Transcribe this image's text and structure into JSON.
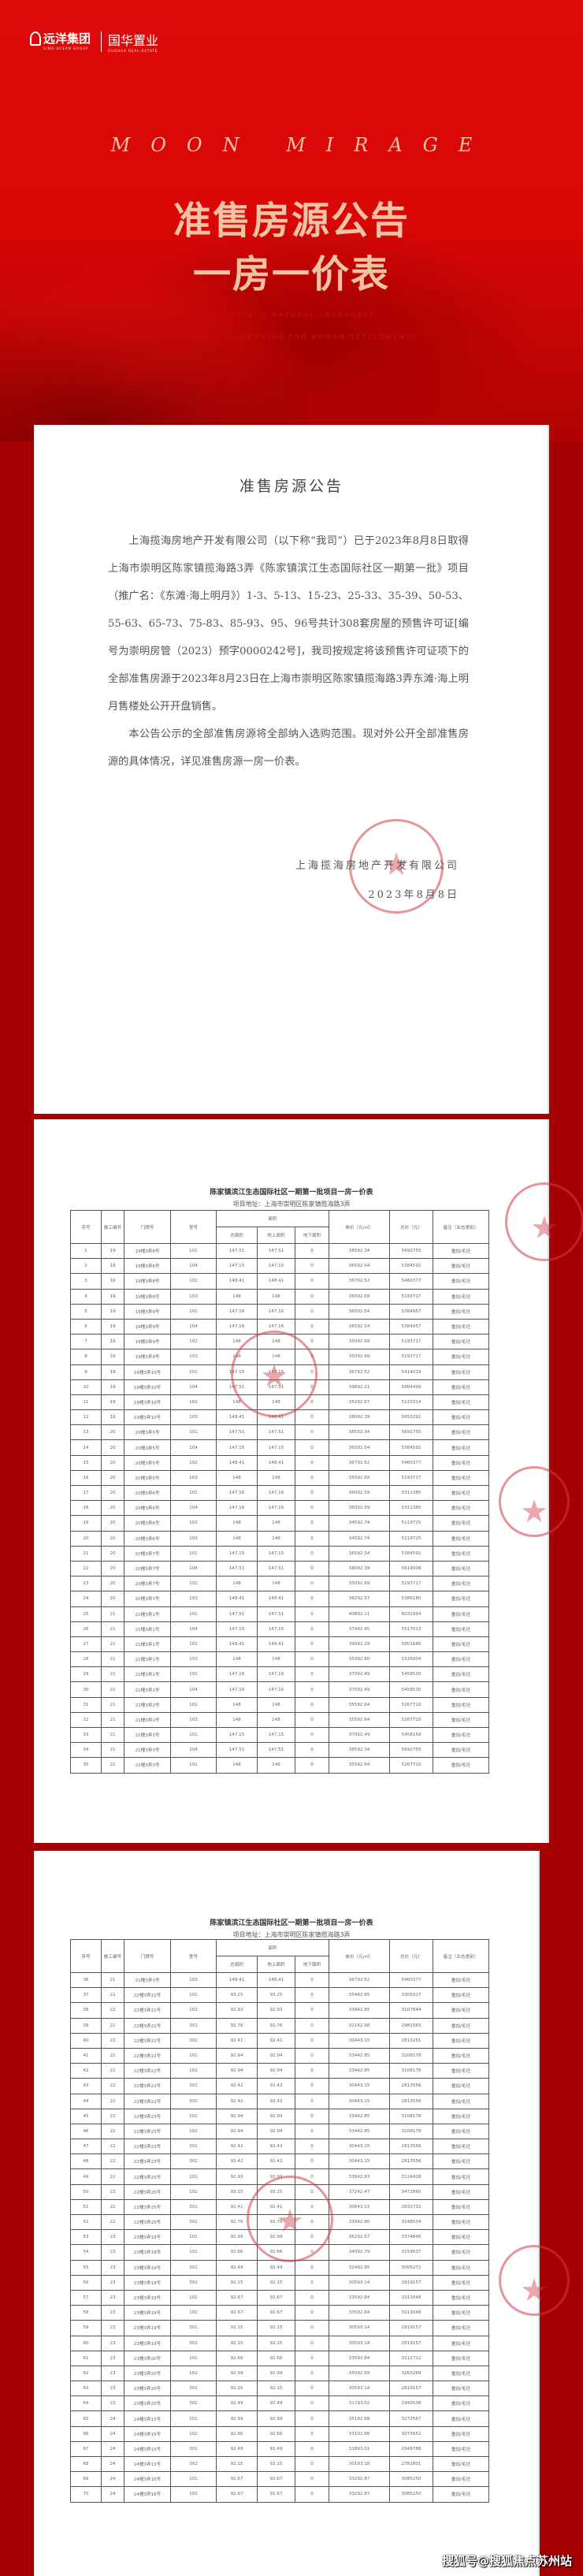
{
  "header": {
    "logo1": {
      "name": "远洋集团",
      "en": "SINO-OCEAN GROUP"
    },
    "logo2": {
      "name": "国华置业",
      "en": "GUOHUA REAL-ESTATE"
    },
    "brand": "MOON MIRAGE",
    "title_line1": "准售房源公告",
    "title_line2": "一房一价表",
    "subtitle1": "SHANGHAI'S NATURAL TREASURES",
    "subtitle2": "THE WORLD'S YEARNING FOR HUMAN SETTLEMENTS"
  },
  "notice": {
    "title": "准售房源公告",
    "para1": "上海揽海房地产开发有限公司（以下称“我司”）已于2023年8月8日取得上海市崇明区陈家镇揽海路3弄《陈家镇滨江生态国际社区一期第一批》项目（推广名：《东滩·海上明月》）1-3、5-13、15-23、25-33、35-39、50-53、55-63、65-73、75-83、85-93、95、96号共计308套房屋的预售许可证[编号为崇明房管（2023）预字0000242号]，我司按规定将该预售许可证项下的全部准售房源于2023年8月23日在上海市崇明区陈家镇揽海路3弄东滩·海上明月售楼处公开开盘销售。",
    "para2": "本公告公示的全部准售房源将全部纳入选购范围。现对外公开全部准售房源的具体情况，详见准售房源一房一价表。",
    "company": "上海揽海房地产开发有限公司",
    "date": "2023年8月8日"
  },
  "price_table": {
    "title": "陈家镇滨江生态国际社区一期第一批项目一房一价表",
    "address": "项目地址：上海市崇明区陈家镇揽海路3弄",
    "headers": {
      "seq": "序号",
      "build_no": "施工编号",
      "door_no": "门牌号",
      "room": "室号",
      "area": "面积",
      "total_area": "总面积",
      "above_area": "地上面积",
      "under_area": "地下面积",
      "unit_price": "单价（元/㎡）",
      "total_price": "总价（元）",
      "remark": "备注（业态类别）"
    },
    "remark_value": "叠加/毛坯",
    "pages": [
      {
        "rows": [
          [
            "1",
            "19",
            "19幢3弄8号",
            "101",
            "147.51",
            "147.51",
            "0",
            "38592.34",
            "5692755"
          ],
          [
            "2",
            "19",
            "19幢3弄8号",
            "104",
            "147.15",
            "147.15",
            "0",
            "36592.54",
            "5384592"
          ],
          [
            "3",
            "19",
            "19幢3弄8号",
            "102",
            "148.41",
            "148.41",
            "0",
            "36792.52",
            "5460377"
          ],
          [
            "4",
            "19",
            "19幢3弄8号",
            "103",
            "148",
            "148",
            "0",
            "35092.69",
            "5193717"
          ],
          [
            "5",
            "19",
            "19幢3弄9号",
            "101",
            "147.16",
            "147.16",
            "0",
            "36592.54",
            "5384957"
          ],
          [
            "6",
            "19",
            "19幢3弄9号",
            "104",
            "147.16",
            "147.16",
            "0",
            "36592.54",
            "5384957"
          ],
          [
            "7",
            "19",
            "19幢3弄9号",
            "102",
            "148",
            "148",
            "0",
            "35092.69",
            "5193717"
          ],
          [
            "8",
            "19",
            "19幢3弄9号",
            "103",
            "148",
            "148",
            "0",
            "35092.69",
            "5193717"
          ],
          [
            "9",
            "19",
            "19幢3弄10号",
            "101",
            "147.15",
            "147.15",
            "0",
            "36792.52",
            "5414019"
          ],
          [
            "10",
            "19",
            "19幢3弄10号",
            "104",
            "147.51",
            "147.51",
            "0",
            "39892.21",
            "5884499"
          ],
          [
            "11",
            "19",
            "19幢3弄10号",
            "102",
            "148",
            "148",
            "0",
            "35292.67",
            "5223314"
          ],
          [
            "12",
            "19",
            "19幢3弄10号",
            "103",
            "148.41",
            "148.41",
            "0",
            "38092.39",
            "5653291"
          ],
          [
            "13",
            "20",
            "20幢3弄5号",
            "101",
            "147.51",
            "147.51",
            "0",
            "38592.34",
            "5692755"
          ],
          [
            "14",
            "20",
            "20幢3弄5号",
            "104",
            "147.15",
            "147.15",
            "0",
            "36592.54",
            "5384592"
          ],
          [
            "15",
            "20",
            "20幢3弄5号",
            "102",
            "148.41",
            "148.41",
            "0",
            "36792.52",
            "5460377"
          ],
          [
            "16",
            "20",
            "20幢3弄5号",
            "103",
            "148",
            "148",
            "0",
            "35092.69",
            "5193717"
          ],
          [
            "17",
            "20",
            "20幢3弄6号",
            "101",
            "147.16",
            "147.16",
            "0",
            "36092.59",
            "5311385"
          ],
          [
            "18",
            "20",
            "20幢3弄6号",
            "104",
            "147.16",
            "147.16",
            "0",
            "36092.59",
            "5311385"
          ],
          [
            "19",
            "20",
            "20幢3弄6号",
            "102",
            "148",
            "148",
            "0",
            "34592.74",
            "5119725"
          ],
          [
            "20",
            "20",
            "20幢3弄6号",
            "103",
            "148",
            "148",
            "0",
            "34592.74",
            "5119725"
          ],
          [
            "21",
            "20",
            "20幢3弄7号",
            "101",
            "147.15",
            "147.15",
            "0",
            "36592.54",
            "5384592"
          ],
          [
            "22",
            "20",
            "20幢3弄7号",
            "104",
            "147.51",
            "147.51",
            "0",
            "38092.39",
            "5619008"
          ],
          [
            "23",
            "20",
            "20幢3弄7号",
            "102",
            "148",
            "148",
            "0",
            "35092.69",
            "5193717"
          ],
          [
            "24",
            "20",
            "20幢3弄7号",
            "103",
            "148.41",
            "148.41",
            "0",
            "36292.57",
            "5386180"
          ],
          [
            "25",
            "21",
            "21幢3弄1号",
            "101",
            "147.51",
            "147.51",
            "0",
            "40892.11",
            "6031994"
          ],
          [
            "26",
            "21",
            "21幢3弄1号",
            "104",
            "147.15",
            "147.15",
            "0",
            "37492.45",
            "5517013"
          ],
          [
            "27",
            "21",
            "21幢3弄1号",
            "102",
            "148.41",
            "148.41",
            "0",
            "39092.29",
            "5801686"
          ],
          [
            "28",
            "21",
            "21幢3弄1号",
            "103",
            "148",
            "148",
            "0",
            "35992.60",
            "5326904"
          ],
          [
            "29",
            "21",
            "21幢3弄2号",
            "101",
            "147.16",
            "147.16",
            "0",
            "37092.49",
            "5458530"
          ],
          [
            "30",
            "21",
            "21幢3弄2号",
            "104",
            "147.16",
            "147.16",
            "0",
            "37092.49",
            "5458530"
          ],
          [
            "31",
            "21",
            "21幢3弄2号",
            "102",
            "148",
            "148",
            "0",
            "35592.64",
            "5267710"
          ],
          [
            "32",
            "21",
            "21幢3弄2号",
            "103",
            "148",
            "148",
            "0",
            "35592.64",
            "5267710"
          ],
          [
            "33",
            "21",
            "21幢3弄3号",
            "101",
            "147.15",
            "147.15",
            "0",
            "37092.49",
            "5458159"
          ],
          [
            "34",
            "21",
            "21幢3弄3号",
            "104",
            "147.51",
            "147.51",
            "0",
            "38592.34",
            "5692755"
          ],
          [
            "35",
            "21",
            "21幢3弄3号",
            "102",
            "148",
            "148",
            "0",
            "35592.64",
            "5267710"
          ]
        ]
      },
      {
        "rows": [
          [
            "36",
            "21",
            "21幢3弄3号",
            "103",
            "148.41",
            "148.41",
            "0",
            "36792.52",
            "5460377"
          ],
          [
            "37",
            "22",
            "22幢3弄21号",
            "101",
            "93.25",
            "93.25",
            "0",
            "35442.65",
            "3305027"
          ],
          [
            "38",
            "22",
            "22幢3弄21号",
            "102",
            "92.93",
            "92.93",
            "0",
            "33442.85",
            "3107844"
          ],
          [
            "39",
            "22",
            "22幢3弄21号",
            "301",
            "92.76",
            "92.76",
            "0",
            "32142.98",
            "2981583"
          ],
          [
            "40",
            "22",
            "22幢3弄21号",
            "302",
            "92.41",
            "92.41",
            "0",
            "30443.15",
            "2813251"
          ],
          [
            "41",
            "22",
            "22幢3弄22号",
            "101",
            "92.94",
            "92.94",
            "0",
            "33442.85",
            "3108178"
          ],
          [
            "42",
            "22",
            "22幢3弄22号",
            "102",
            "92.94",
            "92.94",
            "0",
            "33442.85",
            "3108178"
          ],
          [
            "43",
            "22",
            "22幢3弄22号",
            "301",
            "92.42",
            "92.42",
            "0",
            "30443.15",
            "2813556"
          ],
          [
            "44",
            "22",
            "22幢3弄22号",
            "302",
            "92.42",
            "92.42",
            "0",
            "30443.15",
            "2813556"
          ],
          [
            "45",
            "22",
            "22幢3弄23号",
            "101",
            "92.94",
            "92.94",
            "0",
            "33442.85",
            "3108178"
          ],
          [
            "46",
            "22",
            "22幢3弄23号",
            "102",
            "92.94",
            "92.94",
            "0",
            "33442.85",
            "3108178"
          ],
          [
            "47",
            "22",
            "22幢3弄23号",
            "301",
            "92.42",
            "92.42",
            "0",
            "30443.15",
            "2813556"
          ],
          [
            "48",
            "22",
            "22幢3弄23号",
            "302",
            "92.42",
            "92.42",
            "0",
            "30443.15",
            "2813556"
          ],
          [
            "49",
            "22",
            "22幢3弄25号",
            "101",
            "92.93",
            "92.93",
            "0",
            "33642.83",
            "3126428"
          ],
          [
            "50",
            "22",
            "22幢3弄25号",
            "102",
            "93.25",
            "93.25",
            "0",
            "37242.47",
            "3472860"
          ],
          [
            "51",
            "22",
            "22幢3弄25号",
            "301",
            "92.41",
            "92.41",
            "0",
            "30643.13",
            "2831732"
          ],
          [
            "52",
            "22",
            "22幢3弄25号",
            "302",
            "92.76",
            "92.76",
            "0",
            "33942.80",
            "3148534"
          ],
          [
            "53",
            "23",
            "23幢3弄18号",
            "101",
            "92.99",
            "92.99",
            "0",
            "36292.57",
            "3374846"
          ],
          [
            "54",
            "23",
            "23幢3弄18号",
            "102",
            "92.66",
            "92.66",
            "0",
            "34092.79",
            "3159037"
          ],
          [
            "55",
            "23",
            "23幢3弄18号",
            "301",
            "92.49",
            "92.49",
            "0",
            "32492.95",
            "3005272"
          ],
          [
            "56",
            "23",
            "23幢3弄18号",
            "302",
            "92.15",
            "92.15",
            "0",
            "30593.14",
            "2819157"
          ],
          [
            "57",
            "23",
            "23幢3弄19号",
            "101",
            "92.67",
            "92.67",
            "0",
            "33592.84",
            "3113048"
          ],
          [
            "58",
            "23",
            "23幢3弄19号",
            "102",
            "92.67",
            "92.67",
            "0",
            "33592.84",
            "3113048"
          ],
          [
            "59",
            "23",
            "23幢3弄19号",
            "301",
            "92.15",
            "92.15",
            "0",
            "30593.14",
            "2819157"
          ],
          [
            "60",
            "23",
            "23幢3弄19号",
            "302",
            "92.15",
            "92.15",
            "0",
            "30593.14",
            "2819157"
          ],
          [
            "61",
            "23",
            "23幢3弄20号",
            "101",
            "92.66",
            "92.66",
            "0",
            "33592.84",
            "3112712"
          ],
          [
            "62",
            "23",
            "23幢3弄20号",
            "102",
            "92.99",
            "92.99",
            "0",
            "35092.69",
            "3263269"
          ],
          [
            "63",
            "23",
            "23幢3弄20号",
            "301",
            "92.15",
            "92.15",
            "0",
            "30593.14",
            "2819157"
          ],
          [
            "64",
            "23",
            "23幢3弄20号",
            "302",
            "92.49",
            "92.49",
            "0",
            "31793.02",
            "2940538"
          ],
          [
            "65",
            "24",
            "24幢3弄15号",
            "101",
            "92.99",
            "92.99",
            "0",
            "35192.68",
            "3272567"
          ],
          [
            "66",
            "24",
            "24幢3弄15号",
            "102",
            "92.66",
            "92.66",
            "0",
            "33192.88",
            "3075652"
          ],
          [
            "67",
            "24",
            "24幢3弄15号",
            "301",
            "92.49",
            "92.49",
            "0",
            "31893.01",
            "2949788"
          ],
          [
            "68",
            "24",
            "24幢3弄15号",
            "302",
            "92.15",
            "92.15",
            "0",
            "30193.18",
            "2782801"
          ],
          [
            "69",
            "24",
            "24幢3弄16号",
            "101",
            "92.67",
            "92.67",
            "0",
            "33292.87",
            "3085250"
          ],
          [
            "70",
            "24",
            "24幢3弄16号",
            "102",
            "92.67",
            "92.67",
            "0",
            "33292.87",
            "3085250"
          ]
        ]
      }
    ]
  },
  "watermark": "搜狐号@搜狐焦点苏州站",
  "colors": {
    "banner_red": "#dd0a0a",
    "dark_red": "#a50002",
    "title_peach": "#f0c3a5",
    "stamp_red": "#d23c46"
  }
}
